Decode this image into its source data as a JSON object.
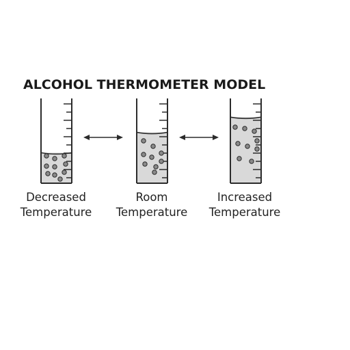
{
  "title": "ALCOHOL THERMOMETER MODEL",
  "tubes": [
    {
      "name": "decreased",
      "label_line1": "Decreased",
      "label_line2": "Temperature",
      "liquid_level": 0.36
    },
    {
      "name": "room",
      "label_line1": "Room",
      "label_line2": "Temperature",
      "liquid_level": 0.6
    },
    {
      "name": "increased",
      "label_line1": "Increased",
      "label_line2": "Temperature",
      "liquid_level": 0.78
    }
  ],
  "colors": {
    "outline": "#2b2b2b",
    "liquid": "#d9d9d9",
    "particle_fill": "#8a8a8a",
    "text": "#222222"
  },
  "icons": {
    "arrow": "double-headed-arrow-icon",
    "particle": "particle-dot-icon"
  }
}
